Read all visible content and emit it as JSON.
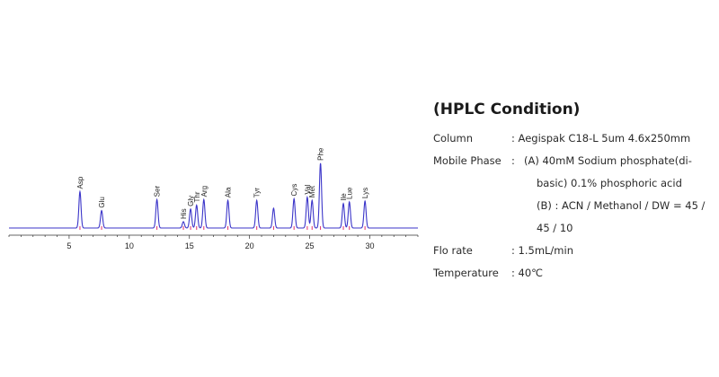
{
  "chart_data": {
    "type": "line",
    "title": "",
    "xlabel": "",
    "ylabel": "",
    "xlim": [
      0,
      34
    ],
    "ylim": [
      0,
      100
    ],
    "x_ticks": [
      5,
      10,
      15,
      20,
      25,
      30
    ],
    "grid": false,
    "colors": {
      "trace": "#3b35c9",
      "axis": "#333333",
      "marker": "#e0306a"
    },
    "peaks": [
      {
        "name": "Asp",
        "rt": 5.9,
        "height": 46
      },
      {
        "name": "Glu",
        "rt": 7.7,
        "height": 22
      },
      {
        "name": "Ser",
        "rt": 12.3,
        "height": 36
      },
      {
        "name": "His",
        "rt": 14.5,
        "height": 8
      },
      {
        "name": "Gly",
        "rt": 15.1,
        "height": 24
      },
      {
        "name": "Thr",
        "rt": 15.6,
        "height": 29
      },
      {
        "name": "Arg",
        "rt": 16.2,
        "height": 36
      },
      {
        "name": "Ala",
        "rt": 18.2,
        "height": 35
      },
      {
        "name": "Tyr",
        "rt": 20.6,
        "height": 35
      },
      {
        "name": "",
        "rt": 22.0,
        "height": 25
      },
      {
        "name": "Cys",
        "rt": 23.7,
        "height": 37
      },
      {
        "name": "Val",
        "rt": 24.8,
        "height": 39
      },
      {
        "name": "Met",
        "rt": 25.2,
        "height": 35
      },
      {
        "name": "Phe",
        "rt": 25.9,
        "height": 82
      },
      {
        "name": "Ile",
        "rt": 27.8,
        "height": 31
      },
      {
        "name": "Lue",
        "rt": 28.3,
        "height": 33
      },
      {
        "name": "Lys",
        "rt": 29.6,
        "height": 34
      }
    ]
  },
  "conditions": {
    "title": "(HPLC Condition)",
    "column_label": "Column",
    "column_value": ": Aegispak C18-L 5um 4.6x250mm",
    "mobile_label": "Mobile Phase",
    "mobile_sep": ":",
    "mobile_a_1": "(A)  40mM Sodium phosphate(di-",
    "mobile_a_2": "basic) 0.1% phosphoric acid",
    "mobile_b_1": "(B) : ACN / Methanol / DW = 45 /",
    "mobile_b_2": "45 / 10",
    "flow_label": "Flo rate",
    "flow_value": ": 1.5mL/min",
    "temp_label": "Temperature",
    "temp_value": ":  40℃"
  }
}
